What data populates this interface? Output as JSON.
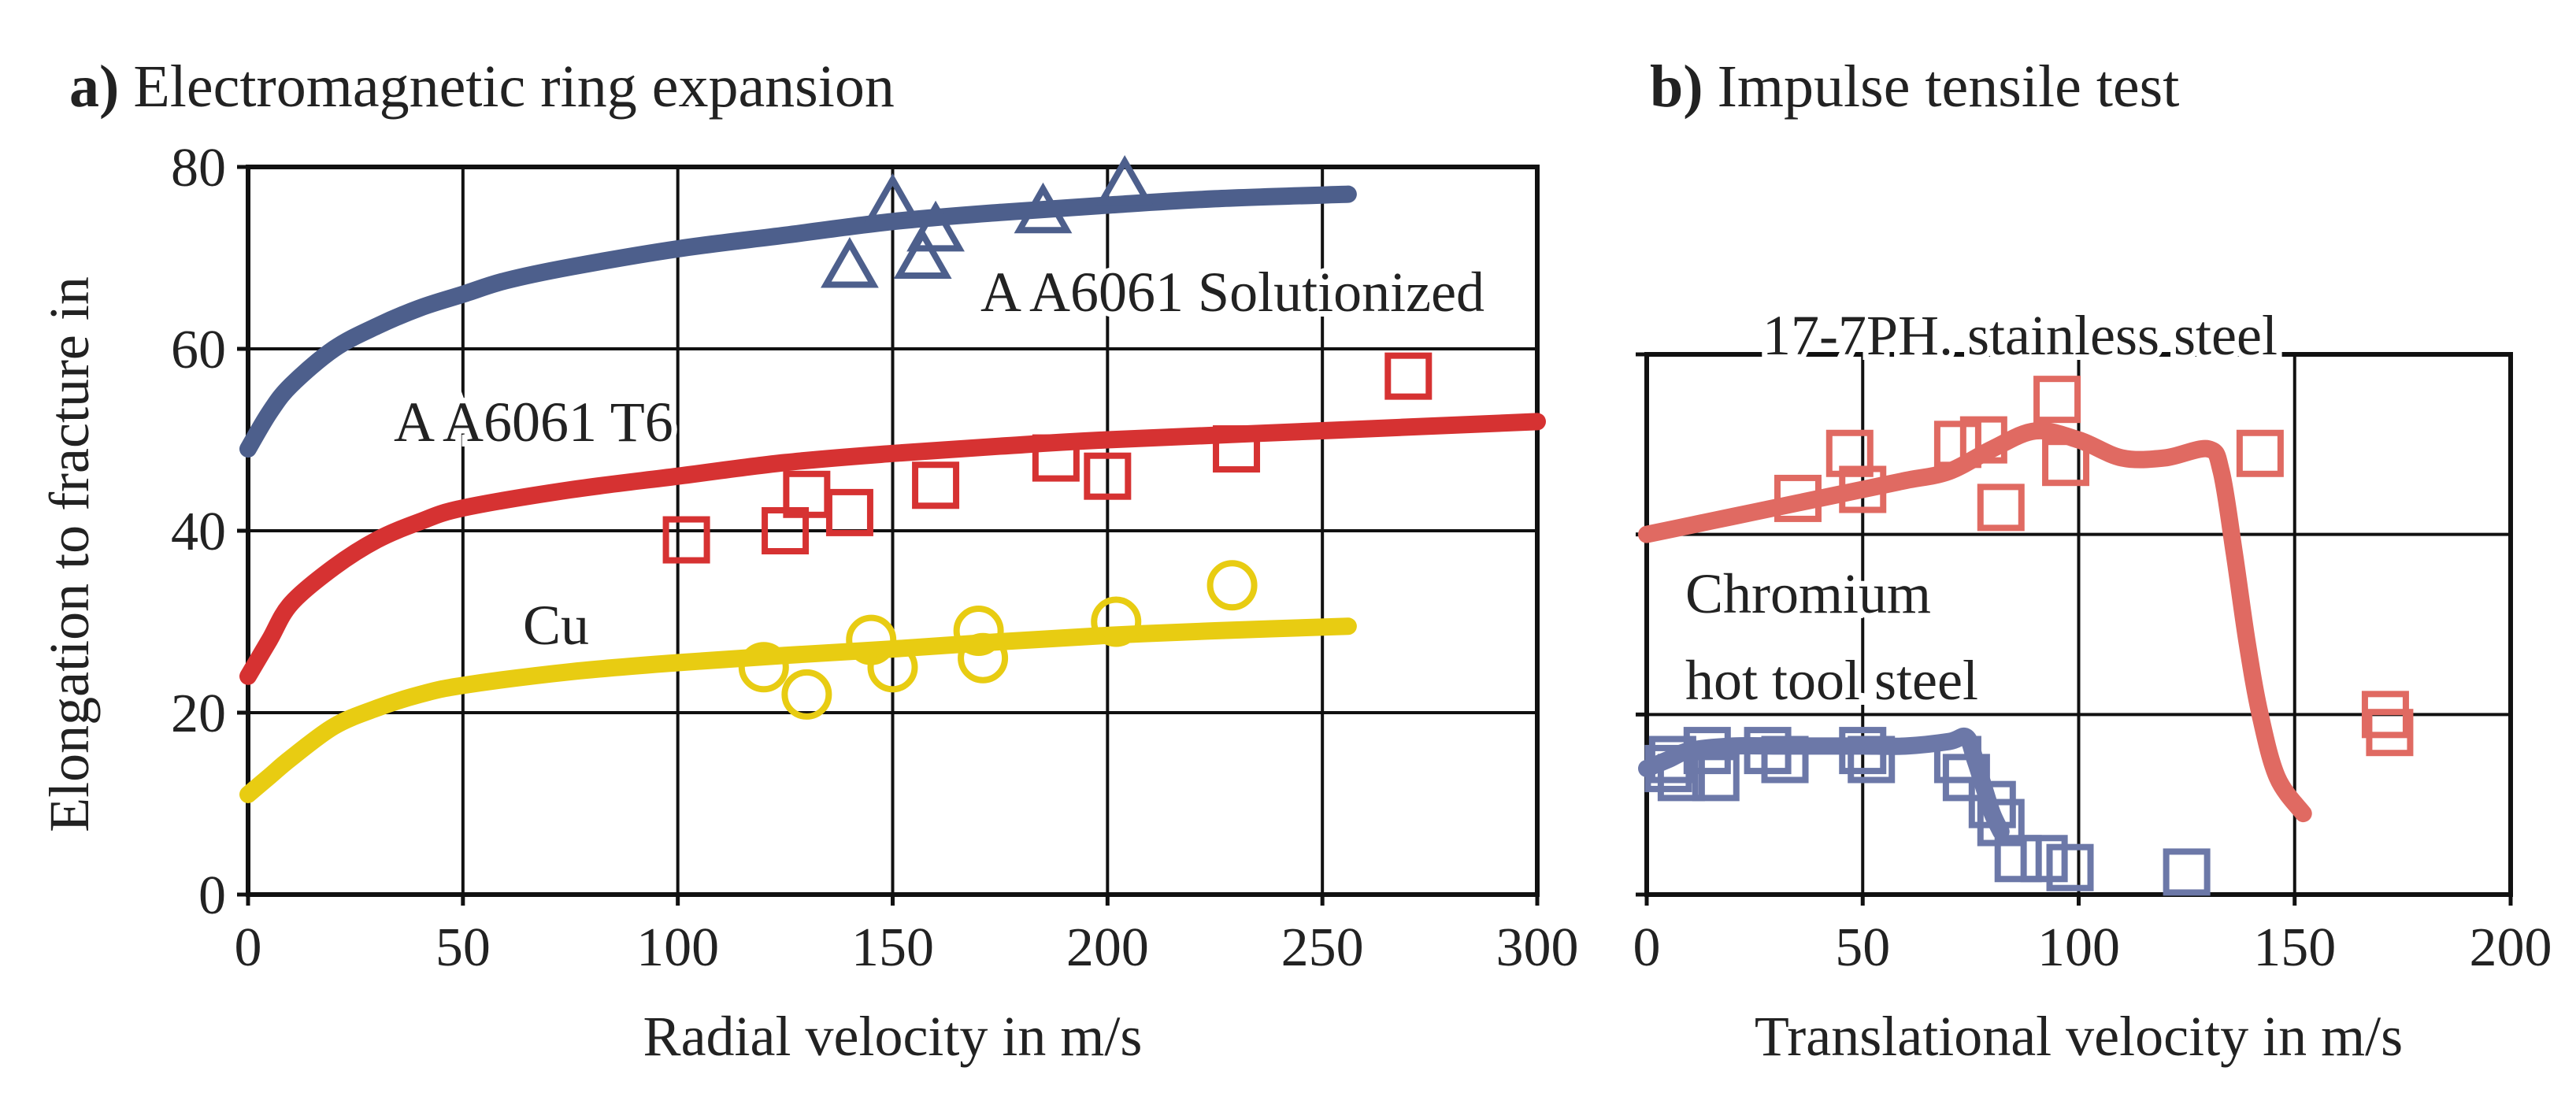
{
  "chart_data": [
    {
      "type": "scatter",
      "panel_tag": "a)",
      "title": "Electromagnetic ring expansion",
      "xlabel": "Radial velocity in m/s",
      "ylabel": "Elongation to fracture in",
      "xlim": [
        0,
        300
      ],
      "ylim": [
        0,
        80
      ],
      "xticks": [
        "0",
        "50",
        "100",
        "150",
        "200",
        "250",
        "300"
      ],
      "yticks": [
        "0",
        "20",
        "40",
        "60",
        "80"
      ],
      "grid": true,
      "series": [
        {
          "name": "AA6061 Solutionized",
          "label": "A A6061 Solutionized",
          "color": "#4d5f8c",
          "marker": "triangle",
          "points": [
            [
              140,
              69
            ],
            [
              150,
              76
            ],
            [
              157,
              70
            ],
            [
              160,
              73
            ],
            [
              185,
              75
            ],
            [
              204,
              78
            ]
          ],
          "curve": [
            [
              0,
              49
            ],
            [
              5,
              53
            ],
            [
              10,
              56
            ],
            [
              20,
              60
            ],
            [
              30,
              62.5
            ],
            [
              40,
              64.5
            ],
            [
              50,
              66
            ],
            [
              60,
              67.5
            ],
            [
              75,
              69
            ],
            [
              100,
              71
            ],
            [
              125,
              72.5
            ],
            [
              150,
              74
            ],
            [
              175,
              75
            ],
            [
              200,
              75.8
            ],
            [
              225,
              76.5
            ],
            [
              256,
              77
            ]
          ]
        },
        {
          "name": "AA6061 T6",
          "label": "A A6061 T6",
          "color": "#d63232",
          "marker": "square",
          "points": [
            [
              102,
              39
            ],
            [
              125,
              40
            ],
            [
              130,
              44
            ],
            [
              140,
              42
            ],
            [
              160,
              45
            ],
            [
              188,
              48
            ],
            [
              200,
              46
            ],
            [
              230,
              49
            ],
            [
              270,
              57
            ]
          ],
          "curve": [
            [
              0,
              24
            ],
            [
              5,
              28
            ],
            [
              10,
              32
            ],
            [
              20,
              36
            ],
            [
              30,
              39
            ],
            [
              40,
              41
            ],
            [
              50,
              42.5
            ],
            [
              75,
              44.5
            ],
            [
              100,
              46
            ],
            [
              125,
              47.5
            ],
            [
              150,
              48.5
            ],
            [
              175,
              49.3
            ],
            [
              200,
              50
            ],
            [
              250,
              51
            ],
            [
              300,
              52
            ]
          ]
        },
        {
          "name": "Cu",
          "label": "Cu",
          "color": "#e8cc12",
          "marker": "circle",
          "points": [
            [
              120,
              25
            ],
            [
              130,
              22
            ],
            [
              145,
              28
            ],
            [
              150,
              25
            ],
            [
              170,
              29
            ],
            [
              171,
              26
            ],
            [
              202,
              30
            ],
            [
              229,
              34
            ]
          ],
          "curve": [
            [
              0,
              11
            ],
            [
              5,
              13
            ],
            [
              10,
              15
            ],
            [
              20,
              18.5
            ],
            [
              30,
              20.5
            ],
            [
              40,
              22
            ],
            [
              50,
              23
            ],
            [
              75,
              24.5
            ],
            [
              100,
              25.5
            ],
            [
              125,
              26.3
            ],
            [
              150,
              27
            ],
            [
              175,
              27.8
            ],
            [
              200,
              28.5
            ],
            [
              225,
              29
            ],
            [
              256,
              29.5
            ]
          ]
        }
      ]
    },
    {
      "type": "scatter",
      "panel_tag": "b)",
      "title": "Impulse tensile test",
      "xlabel": "Translational velocity in m/s",
      "xlim": [
        0,
        200
      ],
      "ylim": [
        0,
        60
      ],
      "xticks": [
        "0",
        "50",
        "100",
        "150",
        "200"
      ],
      "grid": true,
      "series": [
        {
          "name": "17-7PH. stainless steel",
          "label": "17-7PH. stainless steel",
          "color": "#e06a62",
          "marker": "square",
          "points": [
            [
              35,
              44
            ],
            [
              47,
              49
            ],
            [
              50,
              45
            ],
            [
              72,
              50
            ],
            [
              78,
              50.5
            ],
            [
              82,
              43
            ],
            [
              95,
              55
            ],
            [
              97,
              48
            ],
            [
              142,
              49
            ],
            [
              171,
              20
            ],
            [
              172,
              18
            ]
          ],
          "curve": [
            [
              0,
              40
            ],
            [
              10,
              41
            ],
            [
              20,
              42
            ],
            [
              30,
              43
            ],
            [
              40,
              44
            ],
            [
              50,
              45
            ],
            [
              60,
              46
            ],
            [
              70,
              47
            ],
            [
              80,
              49.5
            ],
            [
              90,
              51.5
            ],
            [
              100,
              50.5
            ],
            [
              110,
              48.5
            ],
            [
              120,
              48.5
            ],
            [
              130,
              49.5
            ],
            [
              133,
              47
            ],
            [
              136,
              38
            ],
            [
              139,
              28
            ],
            [
              142,
              20
            ],
            [
              146,
              13
            ],
            [
              152,
              9
            ]
          ]
        },
        {
          "name": "Chromium hot tool steel",
          "label_lines": [
            "Chromium",
            "hot tool steel"
          ],
          "color": "#6c78a8",
          "marker": "square",
          "points": [
            [
              5,
              14
            ],
            [
              6,
              15
            ],
            [
              8,
              13
            ],
            [
              14,
              16
            ],
            [
              16,
              13
            ],
            [
              28,
              16
            ],
            [
              32,
              15
            ],
            [
              50,
              16
            ],
            [
              52,
              15
            ],
            [
              72,
              15
            ],
            [
              74,
              13
            ],
            [
              80,
              10
            ],
            [
              82,
              8
            ],
            [
              86,
              4
            ],
            [
              92,
              4
            ],
            [
              98,
              3
            ],
            [
              125,
              2.5
            ]
          ],
          "curve": [
            [
              0,
              14
            ],
            [
              5,
              15
            ],
            [
              10,
              16
            ],
            [
              20,
              16.5
            ],
            [
              30,
              16.5
            ],
            [
              40,
              16.5
            ],
            [
              50,
              16.5
            ],
            [
              60,
              16.5
            ],
            [
              70,
              17
            ],
            [
              74,
              17.5
            ],
            [
              76,
              15
            ],
            [
              78,
              12
            ],
            [
              80,
              9
            ],
            [
              82,
              7
            ]
          ]
        }
      ]
    }
  ]
}
